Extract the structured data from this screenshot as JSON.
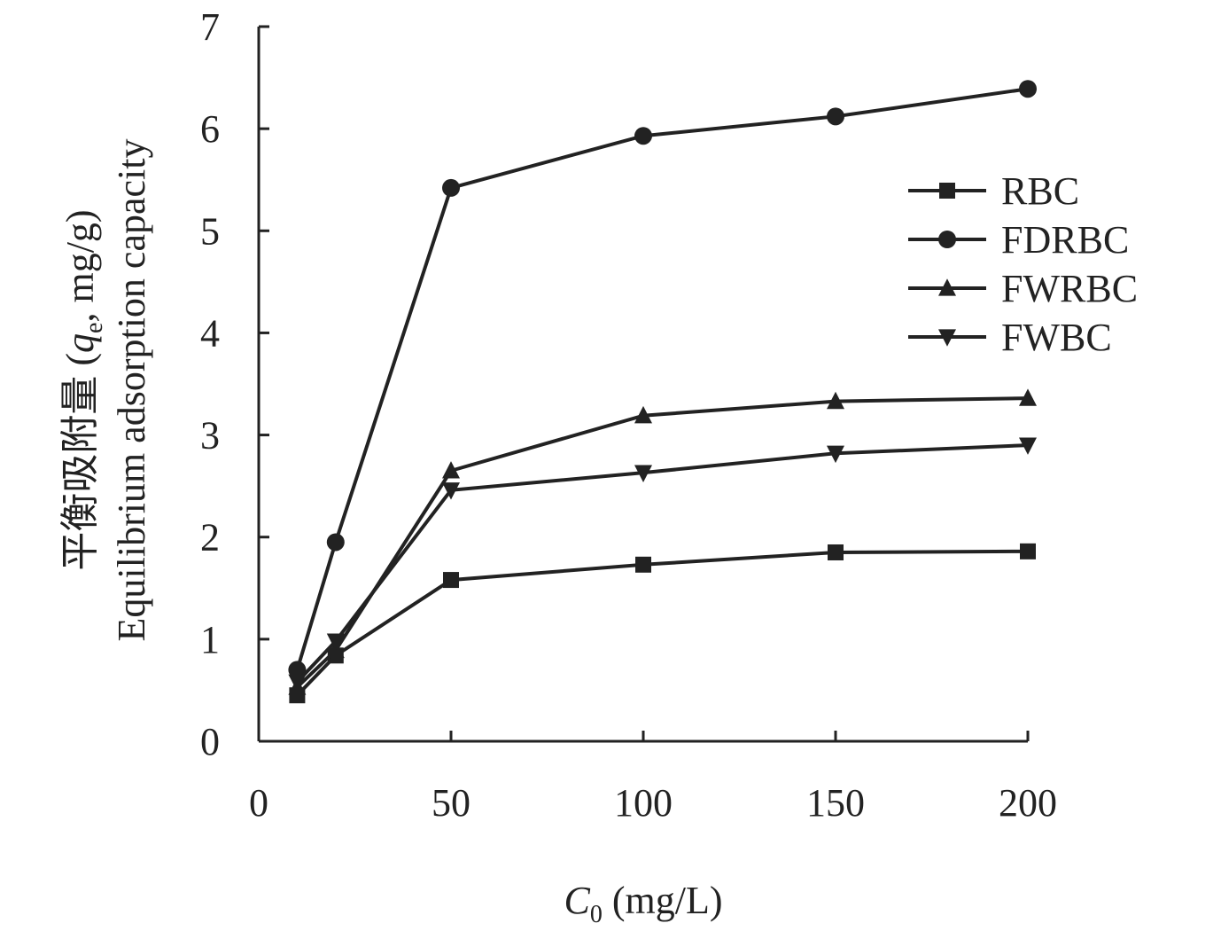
{
  "chart_data": {
    "type": "line",
    "x": [
      10,
      20,
      50,
      100,
      150,
      200
    ],
    "series": [
      {
        "name": "RBC",
        "marker": "square",
        "values": [
          0.45,
          0.84,
          1.58,
          1.73,
          1.85,
          1.86
        ]
      },
      {
        "name": "FDRBC",
        "marker": "circle",
        "values": [
          0.7,
          1.95,
          5.42,
          5.93,
          6.12,
          6.39
        ]
      },
      {
        "name": "FWRBC",
        "marker": "triangle-up",
        "values": [
          0.53,
          0.89,
          2.65,
          3.19,
          3.33,
          3.36
        ]
      },
      {
        "name": "FWBC",
        "marker": "triangle-down",
        "values": [
          0.58,
          0.98,
          2.46,
          2.63,
          2.82,
          2.9
        ]
      }
    ],
    "xlim": [
      0,
      200
    ],
    "ylim": [
      0,
      7
    ],
    "xticks": [
      "0",
      "50",
      "100",
      "150",
      "200"
    ],
    "yticks": [
      "0",
      "1",
      "2",
      "3",
      "4",
      "5",
      "6",
      "7"
    ],
    "xlabel": {
      "var": "C",
      "sub": "0",
      "unit": " (mg/L)"
    },
    "ylabel": {
      "line1_cn": "平衡吸附量 (",
      "line1_var": "q",
      "line1_sub": "e",
      "line1_unit": ", mg/g)",
      "line2": "Equilibrium adsorption capacity"
    },
    "legend_position": "right",
    "grid": false,
    "color": "#222222"
  }
}
